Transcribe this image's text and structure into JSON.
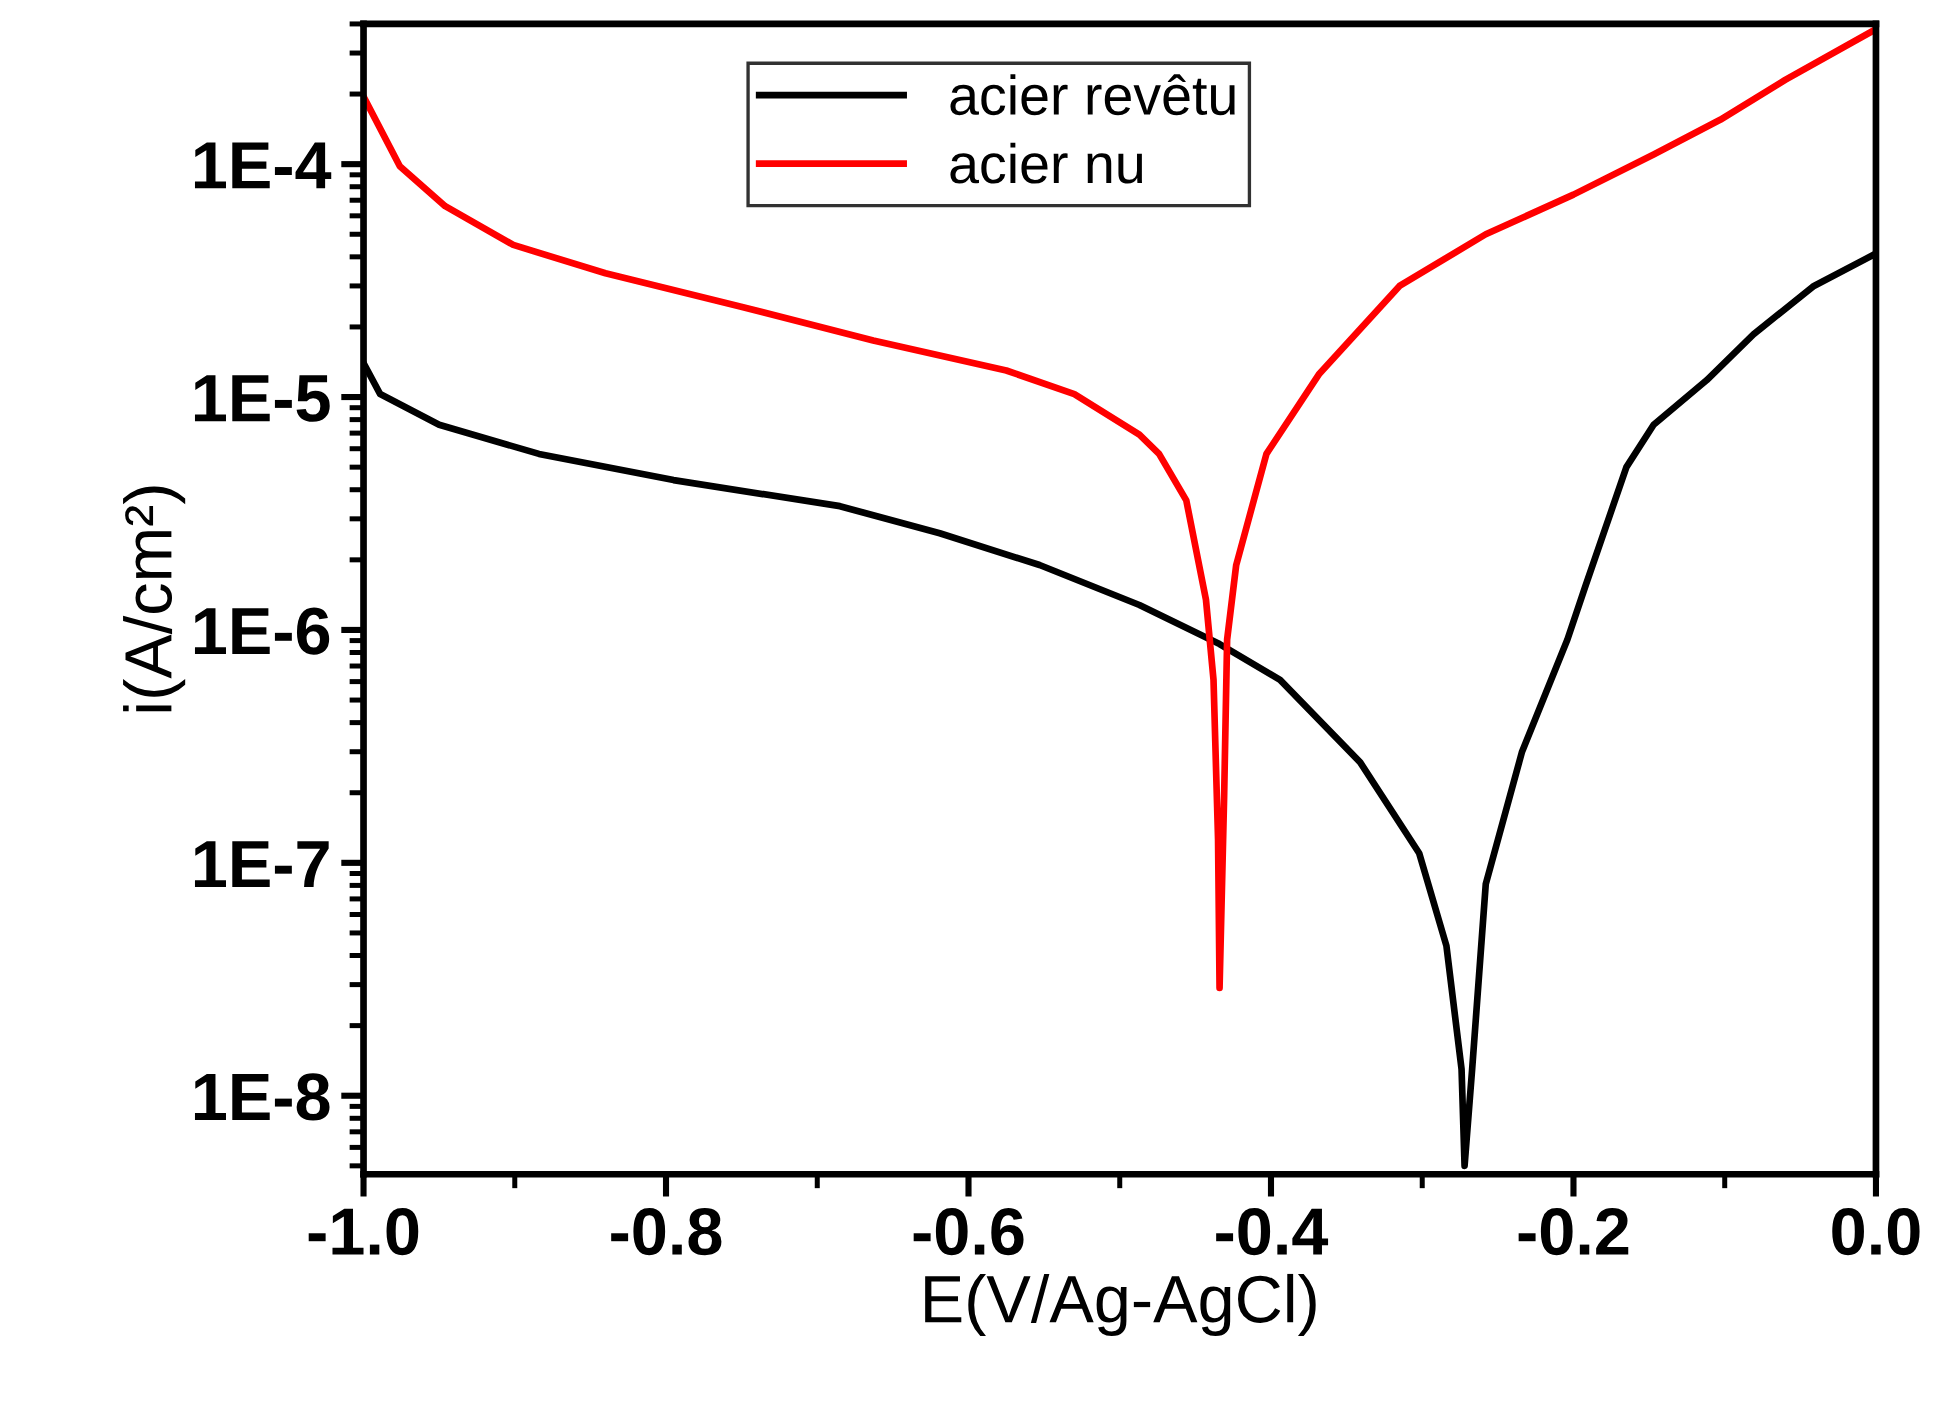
{
  "chart_data": {
    "type": "line",
    "xlabel": "E(V/Ag-AgCl)",
    "ylabel": "i(A/cm²)",
    "log": "y",
    "legend": "top",
    "grid": false,
    "marker": "none",
    "line_style": "solid",
    "xlim": [
      -1.0,
      0.0
    ],
    "xticks": [
      {
        "value": -1.0,
        "label": "-1.0"
      },
      {
        "value": -0.8,
        "label": "-0.8"
      },
      {
        "value": -0.6,
        "label": "-0.6"
      },
      {
        "value": -0.4,
        "label": "-0.4"
      },
      {
        "value": -0.2,
        "label": "-0.2"
      },
      {
        "value": 0.0,
        "label": "0.0"
      }
    ],
    "ylim": [
      4.6e-09,
      0.0004
    ],
    "yticks": [
      {
        "value": 1e-08,
        "label": "1E-8"
      },
      {
        "value": 1e-07,
        "label": "1E-7"
      },
      {
        "value": 1e-06,
        "label": "1E-6"
      },
      {
        "value": 1e-05,
        "label": "1E-5"
      },
      {
        "value": 0.0001,
        "label": "1E-4"
      }
    ],
    "series": [
      {
        "name": "acier revêtu",
        "color": "#000000",
        "x": [
          -1.0,
          -0.989,
          -0.95,
          -0.884,
          -0.795,
          -0.685,
          -0.619,
          -0.553,
          -0.487,
          -0.434,
          -0.394,
          -0.341,
          -0.302,
          -0.284,
          -0.274,
          -0.272,
          -0.267,
          -0.258,
          -0.234,
          -0.204,
          -0.192,
          -0.165,
          -0.147,
          -0.112,
          -0.081,
          -0.041,
          -0.001
        ],
        "values": [
          1.4e-05,
          1.03e-05,
          7.6e-06,
          5.7e-06,
          4.4e-06,
          3.4e-06,
          2.6e-06,
          1.9e-06,
          1.28e-06,
          8.7e-07,
          6.1e-07,
          2.7e-07,
          1.1e-07,
          4.4e-08,
          1.3e-08,
          5e-09,
          1.3e-08,
          8.1e-08,
          3e-07,
          9.1e-07,
          1.55e-06,
          5e-06,
          7.6e-06,
          1.18e-05,
          1.86e-05,
          3e-05,
          4.1e-05
        ]
      },
      {
        "name": "acier nu",
        "color": "#ff0000",
        "x": [
          -1.0,
          -0.976,
          -0.946,
          -0.901,
          -0.84,
          -0.751,
          -0.663,
          -0.575,
          -0.53,
          -0.487,
          -0.474,
          -0.456,
          -0.443,
          -0.438,
          -0.435,
          -0.434,
          -0.431,
          -0.429,
          -0.423,
          -0.403,
          -0.368,
          -0.315,
          -0.258,
          -0.2,
          -0.147,
          -0.103,
          -0.06,
          0.0
        ],
        "values": [
          0.000195,
          9.8e-05,
          6.6e-05,
          4.5e-05,
          3.4e-05,
          2.45e-05,
          1.75e-05,
          1.3e-05,
          1.03e-05,
          6.9e-06,
          5.7e-06,
          3.6e-06,
          1.35e-06,
          6.1e-07,
          1.26e-07,
          2.9e-08,
          1.9e-07,
          9.1e-07,
          1.9e-06,
          5.7e-06,
          1.26e-05,
          3e-05,
          5e-05,
          7.4e-05,
          0.00011,
          0.000155,
          0.00023,
          0.00038
        ]
      }
    ]
  }
}
